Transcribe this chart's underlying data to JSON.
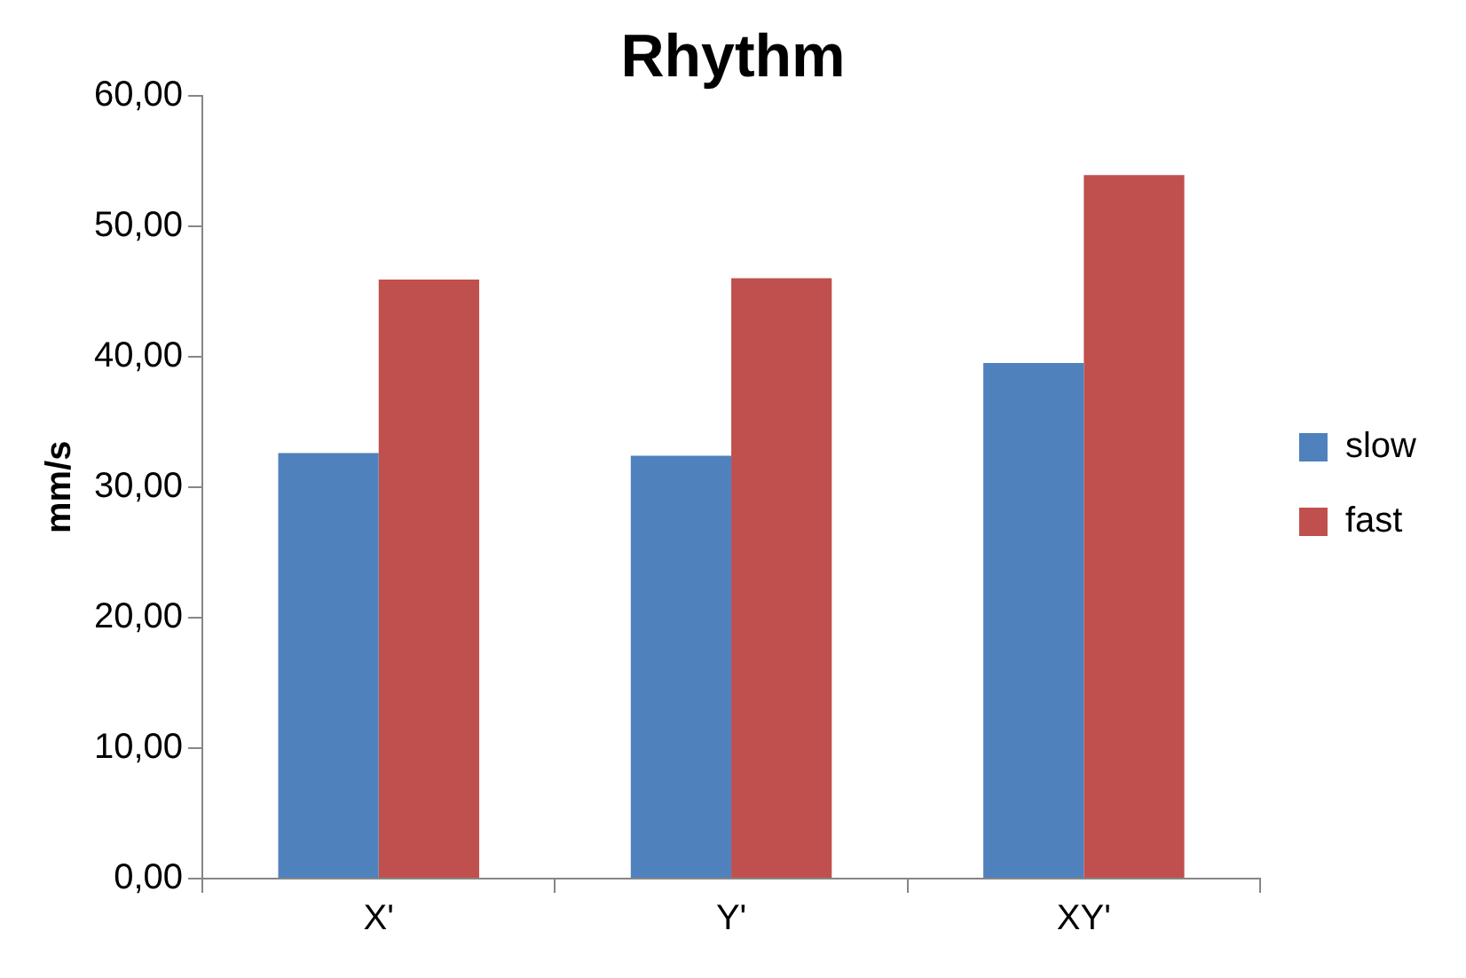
{
  "chart_data": {
    "type": "bar",
    "title": "Rhythm",
    "ylabel": "mm/s",
    "categories": [
      "X'",
      "Y'",
      "XY'"
    ],
    "series": [
      {
        "name": "slow",
        "color": "#4f81bd",
        "values": [
          32.6,
          32.4,
          39.5
        ]
      },
      {
        "name": "fast",
        "color": "#c0504d",
        "values": [
          45.9,
          46.0,
          53.9
        ]
      }
    ],
    "ylim": [
      0,
      60
    ],
    "yticks": [
      {
        "value": 0,
        "label": "0,00"
      },
      {
        "value": 10,
        "label": "10,00"
      },
      {
        "value": 20,
        "label": "20,00"
      },
      {
        "value": 30,
        "label": "30,00"
      },
      {
        "value": 40,
        "label": "40,00"
      },
      {
        "value": 50,
        "label": "50,00"
      },
      {
        "value": 60,
        "label": "60,00"
      }
    ],
    "grid": false,
    "legend": "right"
  }
}
